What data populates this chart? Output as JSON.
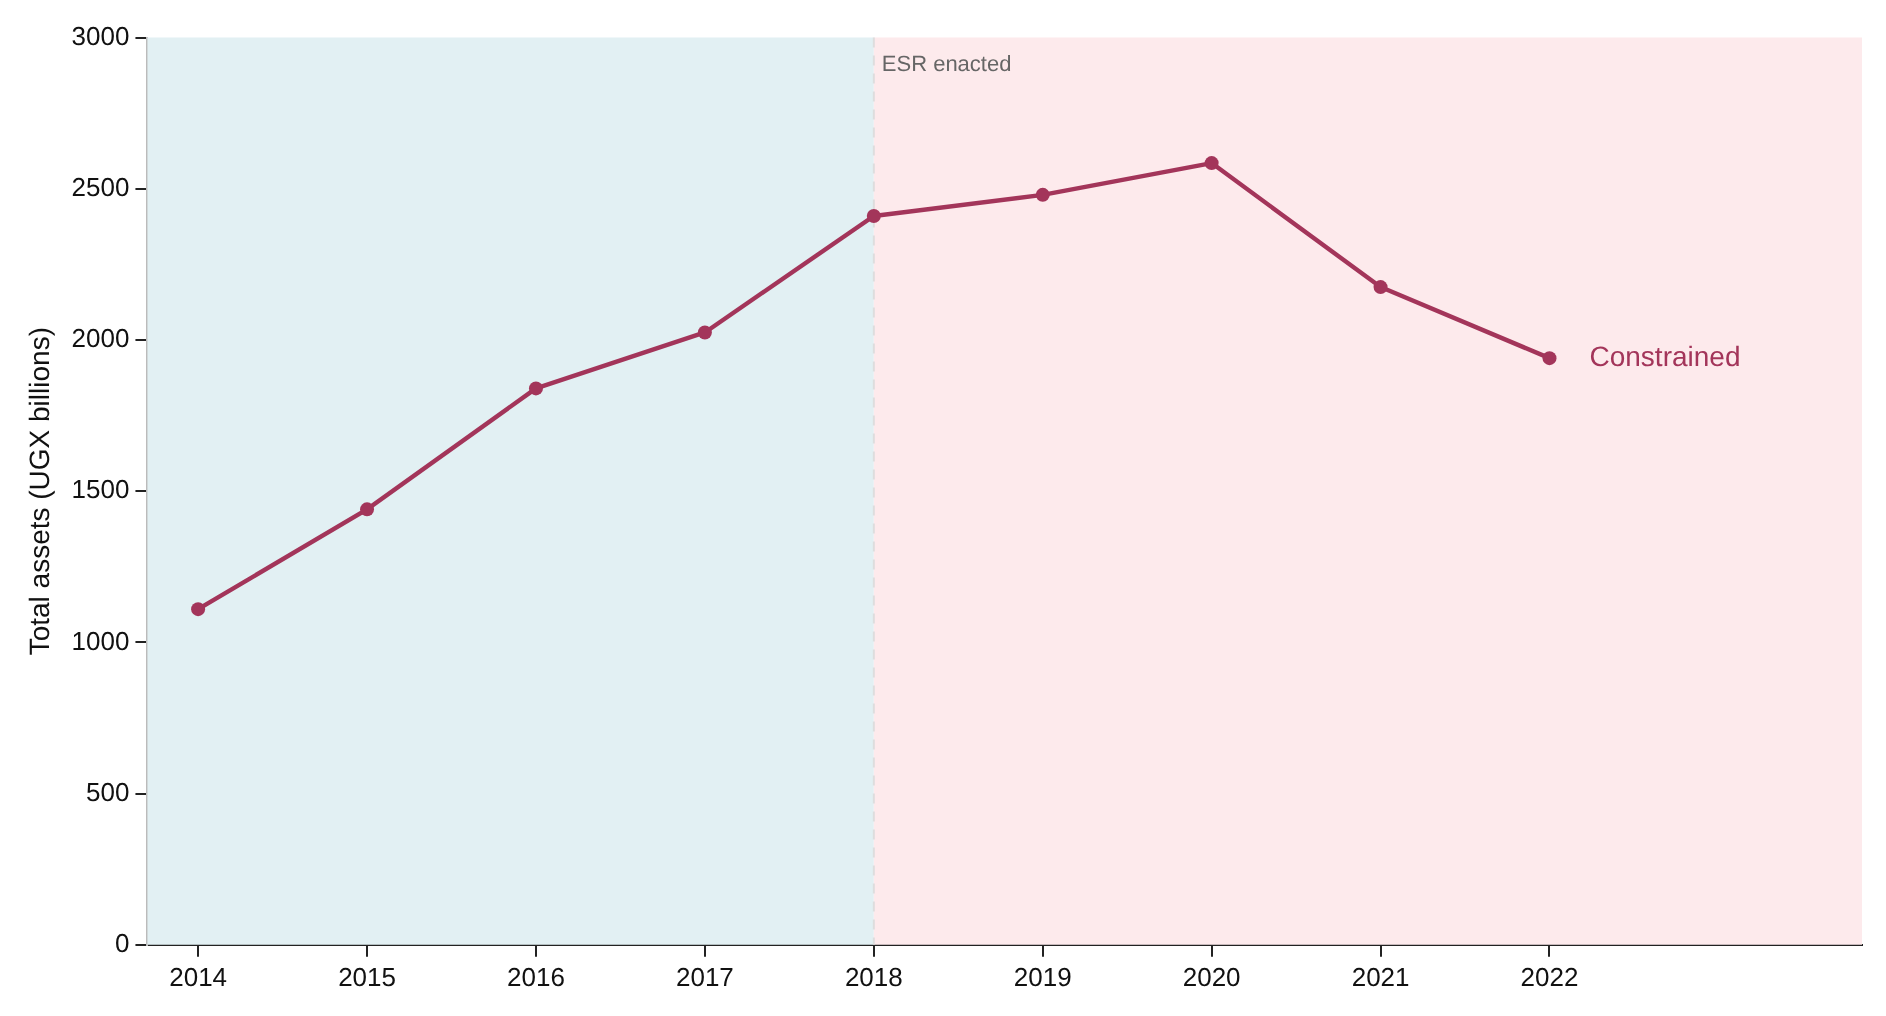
{
  "chart_data": {
    "type": "line",
    "ylabel": "Total assets (UGX billions)",
    "x": [
      2014,
      2015,
      2016,
      2017,
      2018,
      2019,
      2020,
      2021,
      2022
    ],
    "series": [
      {
        "name": "Constrained",
        "color": "#a3355a",
        "values": [
          1110,
          1440,
          1840,
          2025,
          2410,
          2480,
          2585,
          2175,
          1940
        ]
      }
    ],
    "xlim": [
      2013.7,
      2023.85
    ],
    "xticks": [
      2014,
      2015,
      2016,
      2017,
      2018,
      2019,
      2020,
      2021,
      2022
    ],
    "ylim": [
      0,
      3000
    ],
    "yticks": [
      0,
      500,
      1000,
      1500,
      2000,
      2500,
      3000
    ],
    "bands": [
      {
        "axis": "x",
        "from": 2013.7,
        "to": 2018,
        "color": "#e2f0f3"
      },
      {
        "axis": "x",
        "from": 2018,
        "to": 2023.85,
        "color": "#fdeaec"
      }
    ],
    "ref_lines": [
      {
        "axis": "x",
        "value": 2018,
        "label": "ESR enacted",
        "color": "#dddddd",
        "line_style": "dashed"
      }
    ],
    "grid": false,
    "legend": false,
    "marker": "circle",
    "line_style": "solid"
  }
}
